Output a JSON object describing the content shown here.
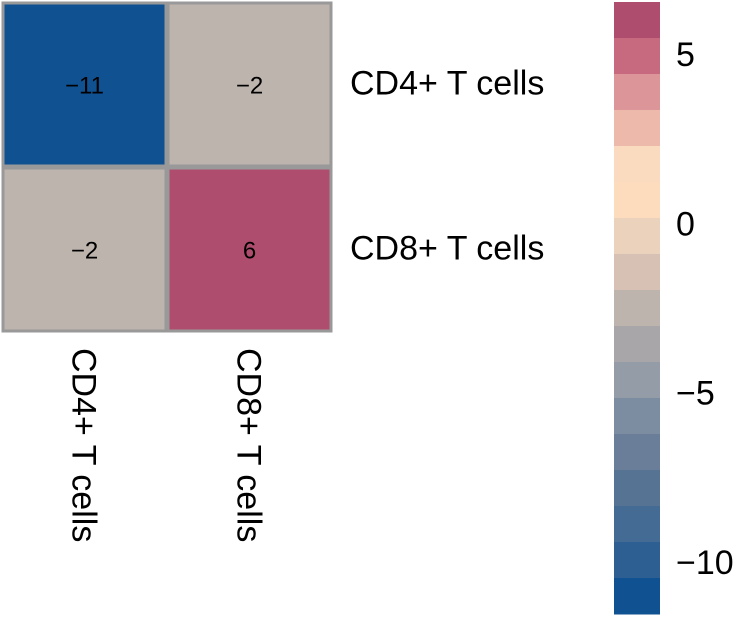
{
  "chart_data": {
    "type": "heatmap",
    "rows": [
      "CD4+ T cells",
      "CD8+ T cells"
    ],
    "columns": [
      "CD4+ T cells",
      "CD8+ T cells"
    ],
    "values": [
      [
        -11,
        -2
      ],
      [
        -2,
        6
      ]
    ],
    "cell_labels": [
      [
        "−11",
        "−2"
      ],
      [
        "−2",
        "6"
      ]
    ],
    "colorbar": {
      "range": [
        -11,
        6
      ],
      "ticks": [
        {
          "value": 5,
          "label": "5"
        },
        {
          "value": 0,
          "label": "0"
        },
        {
          "value": -5,
          "label": "−5"
        },
        {
          "value": -10,
          "label": "−10"
        }
      ],
      "colors_top_to_bottom": [
        "#ae4d6e",
        "#c76a80",
        "#dc9599",
        "#ecb9aa",
        "#fbdbbf",
        "#fddcbe",
        "#ebd2bd",
        "#d6c1b4",
        "#bdb4ae",
        "#a8a6a8",
        "#949da7",
        "#7c8ca1",
        "#6a7e9a",
        "#577393",
        "#446b94",
        "#2e5f92",
        "#105192"
      ]
    },
    "colors": {
      "cell_border": "#999999",
      "cell_min": "#105192",
      "cell_neutral": "#bdb4ae",
      "cell_max": "#ae4d6e"
    }
  }
}
